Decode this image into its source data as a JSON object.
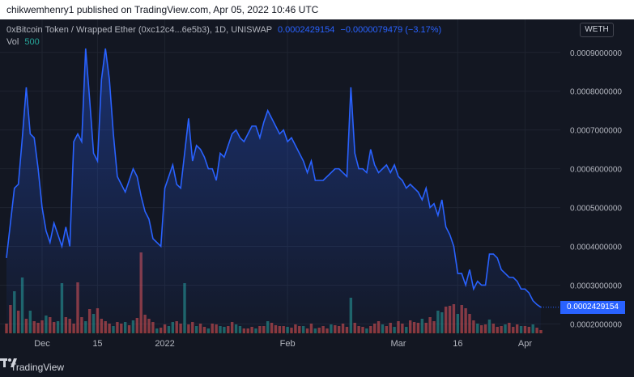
{
  "header": {
    "text": "chikwemhenry1 published on TradingView.com, Apr 05, 2022 10:46 UTC"
  },
  "legend": {
    "symbol": "0xBitcoin Token / Wrapped Ether (0xc12c4...6e5b3), 1D, UNISWAP",
    "last": "0.0002429154",
    "change": "−0.0000079479 (−3.17%)",
    "vol_label": "Vol",
    "vol_value": "500"
  },
  "currency": "WETH",
  "price_tag": "0.0002429154",
  "footer": {
    "brand": "TradingView"
  },
  "colors": {
    "line": "#2962ff",
    "up": "#26a69a",
    "down": "#ef5350",
    "bg": "#131722"
  },
  "chart_data": {
    "type": "line",
    "ylim": [
      0.00018,
      0.00096
    ],
    "y_ticks": [
      "0.0009000000",
      "0.0008000000",
      "0.0007000000",
      "0.0006000000",
      "0.0005000000",
      "0.0004000000",
      "0.0003000000",
      "0.0002000000"
    ],
    "y_tick_values": [
      0.0009,
      0.0008,
      0.0007,
      0.0006,
      0.0005,
      0.0004,
      0.0003,
      0.0002
    ],
    "x_ticks": [
      {
        "label": "Dec",
        "index": 9
      },
      {
        "label": "15",
        "index": 23
      },
      {
        "label": "2022",
        "index": 40
      },
      {
        "label": "Feb",
        "index": 71
      },
      {
        "label": "Mar",
        "index": 99
      },
      {
        "label": "16",
        "index": 114
      },
      {
        "label": "Apr",
        "index": 131
      }
    ],
    "series": [
      {
        "values": [
          0.00037,
          0.00046,
          0.00055,
          0.00056,
          0.00068,
          0.00081,
          0.00069,
          0.00068,
          0.0006,
          0.0005,
          0.00044,
          0.00041,
          0.00046,
          0.00043,
          0.0004,
          0.00045,
          0.0004,
          0.00067,
          0.00069,
          0.00067,
          0.00091,
          0.00078,
          0.00064,
          0.00062,
          0.00083,
          0.00091,
          0.00083,
          0.00069,
          0.00058,
          0.00056,
          0.00054,
          0.00057,
          0.0006,
          0.00058,
          0.00053,
          0.00049,
          0.00047,
          0.00042,
          0.00041,
          0.0004,
          0.00055,
          0.00058,
          0.00061,
          0.00056,
          0.00055,
          0.00064,
          0.00073,
          0.00062,
          0.00066,
          0.00065,
          0.00063,
          0.0006,
          0.0006,
          0.00057,
          0.00064,
          0.00063,
          0.00066,
          0.00069,
          0.0007,
          0.00068,
          0.00067,
          0.00069,
          0.00071,
          0.00071,
          0.00068,
          0.00072,
          0.00075,
          0.00073,
          0.00071,
          0.00069,
          0.0007,
          0.00067,
          0.00068,
          0.00066,
          0.00064,
          0.00062,
          0.00059,
          0.00062,
          0.00057,
          0.00057,
          0.00057,
          0.00058,
          0.00059,
          0.0006,
          0.0006,
          0.00059,
          0.00058,
          0.00081,
          0.00064,
          0.0006,
          0.0006,
          0.00059,
          0.00065,
          0.00061,
          0.00059,
          0.0006,
          0.00061,
          0.00059,
          0.00061,
          0.00058,
          0.00057,
          0.00055,
          0.00056,
          0.00055,
          0.00054,
          0.00052,
          0.00055,
          0.0005,
          0.00051,
          0.00048,
          0.00052,
          0.00045,
          0.00043,
          0.0004,
          0.00033,
          0.00033,
          0.0003,
          0.00034,
          0.00029,
          0.00031,
          0.0003,
          0.0003,
          0.00038,
          0.00038,
          0.00037,
          0.00034,
          0.00033,
          0.00032,
          0.00032,
          0.00031,
          0.00029,
          0.00029,
          0.00028,
          0.00026,
          0.00025,
          0.000243
        ]
      }
    ],
    "volume": {
      "max": 1000,
      "values": [
        120,
        350,
        520,
        280,
        690,
        180,
        280,
        150,
        130,
        160,
        220,
        200,
        140,
        150,
        620,
        200,
        180,
        120,
        630,
        200,
        150,
        300,
        240,
        310,
        180,
        150,
        120,
        90,
        140,
        120,
        140,
        100,
        160,
        190,
        1000,
        230,
        180,
        140,
        60,
        70,
        110,
        90,
        140,
        150,
        120,
        620,
        110,
        140,
        90,
        120,
        80,
        60,
        120,
        110,
        90,
        80,
        90,
        140,
        110,
        90,
        60,
        60,
        80,
        60,
        90,
        90,
        150,
        130,
        100,
        90,
        90,
        80,
        70,
        110,
        90,
        90,
        60,
        120,
        60,
        70,
        90,
        60,
        110,
        100,
        90,
        120,
        80,
        440,
        130,
        90,
        80,
        60,
        90,
        120,
        150,
        110,
        90,
        130,
        80,
        150,
        120,
        80,
        160,
        140,
        130,
        180,
        130,
        200,
        150,
        280,
        260,
        330,
        340,
        360,
        240,
        350,
        310,
        240,
        160,
        120,
        100,
        110,
        170,
        120,
        80,
        90,
        110,
        130,
        80,
        110,
        90,
        90,
        80,
        110,
        70,
        40
      ],
      "up": [
        0,
        0,
        1,
        0,
        1,
        0,
        1,
        0,
        0,
        0,
        1,
        0,
        0,
        1,
        1,
        0,
        0,
        0,
        0,
        0,
        1,
        0,
        1,
        0,
        0,
        0,
        0,
        1,
        0,
        0,
        1,
        0,
        1,
        0,
        0,
        0,
        0,
        0,
        1,
        0,
        0,
        1,
        1,
        0,
        0,
        1,
        0,
        0,
        1,
        0,
        0,
        1,
        0,
        0,
        1,
        1,
        0,
        0,
        1,
        1,
        0,
        0,
        0,
        1,
        0,
        0,
        1,
        0,
        0,
        0,
        0,
        1,
        0,
        0,
        0,
        1,
        0,
        0,
        1,
        0,
        0,
        0,
        1,
        0,
        0,
        0,
        0,
        1,
        0,
        0,
        0,
        1,
        0,
        0,
        0,
        1,
        0,
        0,
        1,
        0,
        0,
        1,
        0,
        0,
        0,
        1,
        0,
        0,
        0,
        1,
        1,
        0,
        0,
        0,
        1,
        0,
        0,
        0,
        0,
        1,
        0,
        0,
        1,
        0,
        0,
        0,
        1,
        0,
        0,
        0,
        1,
        0,
        0,
        1,
        0,
        0
      ]
    }
  }
}
